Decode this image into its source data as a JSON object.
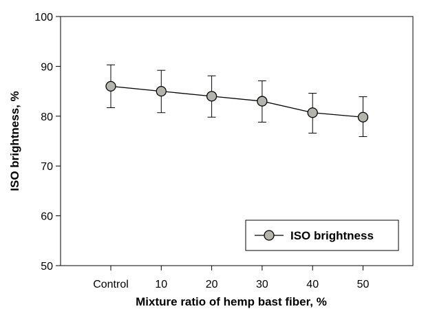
{
  "chart_data": {
    "type": "line",
    "title": "",
    "xlabel": "Mixture ratio of hemp bast fiber, %",
    "ylabel": "ISO brightness, %",
    "categories": [
      "Control",
      "10",
      "20",
      "30",
      "40",
      "50"
    ],
    "series": [
      {
        "name": "ISO brightness",
        "values": [
          86.0,
          85.0,
          84.0,
          83.0,
          80.7,
          79.8
        ],
        "error_upper": [
          90.3,
          89.2,
          88.1,
          87.1,
          84.6,
          83.9
        ],
        "error_lower": [
          81.7,
          80.7,
          79.8,
          78.8,
          76.6,
          75.9
        ]
      }
    ],
    "ylim": [
      50,
      100
    ],
    "yticks": [
      50,
      60,
      70,
      80,
      90,
      100
    ],
    "grid": false,
    "legend_position": "bottom-right",
    "colors": {
      "marker_fill": "#b4b4ac",
      "line": "#000000",
      "axis": "#000000"
    }
  }
}
